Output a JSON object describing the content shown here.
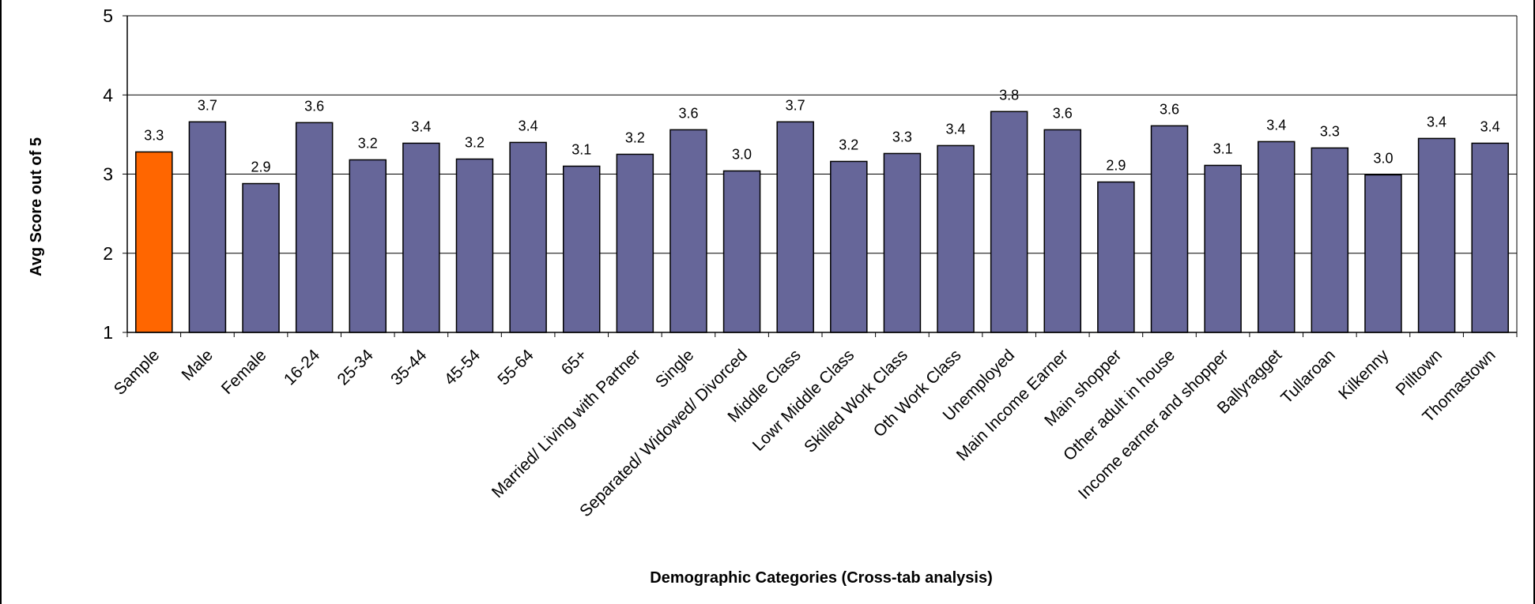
{
  "chart_data": {
    "type": "bar",
    "title": "",
    "xlabel": "Demographic Categories (Cross-tab analysis)",
    "ylabel": "Avg Score out of 5",
    "ylim": [
      1,
      5
    ],
    "yticks": [
      "1",
      "2",
      "3",
      "4",
      "5"
    ],
    "grid": true,
    "legend": "none",
    "categories": [
      "Sample",
      "Male",
      "Female",
      "16-24",
      "25-34",
      "35-44",
      "45-54",
      "55-64",
      "65+",
      "Married/ Living with Partner",
      "Single",
      "Separated/ Widowed/ Divorced",
      "Middle Class",
      "Lowr Middle Class",
      "Skilled Work Class",
      "Oth Work Class",
      "Unemployed",
      "Main Income Earner",
      "Main shopper",
      "Other adult in house",
      "Income earner and shopper",
      "Ballyragget",
      "Tullaroan",
      "Kilkenny",
      "Pilltown",
      "Thomastown"
    ],
    "values": [
      3.28,
      3.66,
      2.88,
      3.65,
      3.18,
      3.39,
      3.19,
      3.4,
      3.1,
      3.25,
      3.56,
      3.04,
      3.66,
      3.16,
      3.26,
      3.36,
      3.79,
      3.56,
      2.9,
      3.61,
      3.11,
      3.41,
      3.33,
      2.99,
      3.45,
      3.39
    ],
    "labels": [
      "3.3",
      "3.7",
      "2.9",
      "3.6",
      "3.2",
      "3.4",
      "3.2",
      "3.4",
      "3.1",
      "3.2",
      "3.6",
      "3.0",
      "3.7",
      "3.2",
      "3.3",
      "3.4",
      "3.8",
      "3.6",
      "2.9",
      "3.6",
      "3.1",
      "3.4",
      "3.3",
      "3.0",
      "3.4",
      "3.4"
    ],
    "highlight_index": 0,
    "colors": {
      "highlight": "#FF6600",
      "bar": "#666699",
      "grid": "#000000",
      "axis": "#000000"
    }
  }
}
